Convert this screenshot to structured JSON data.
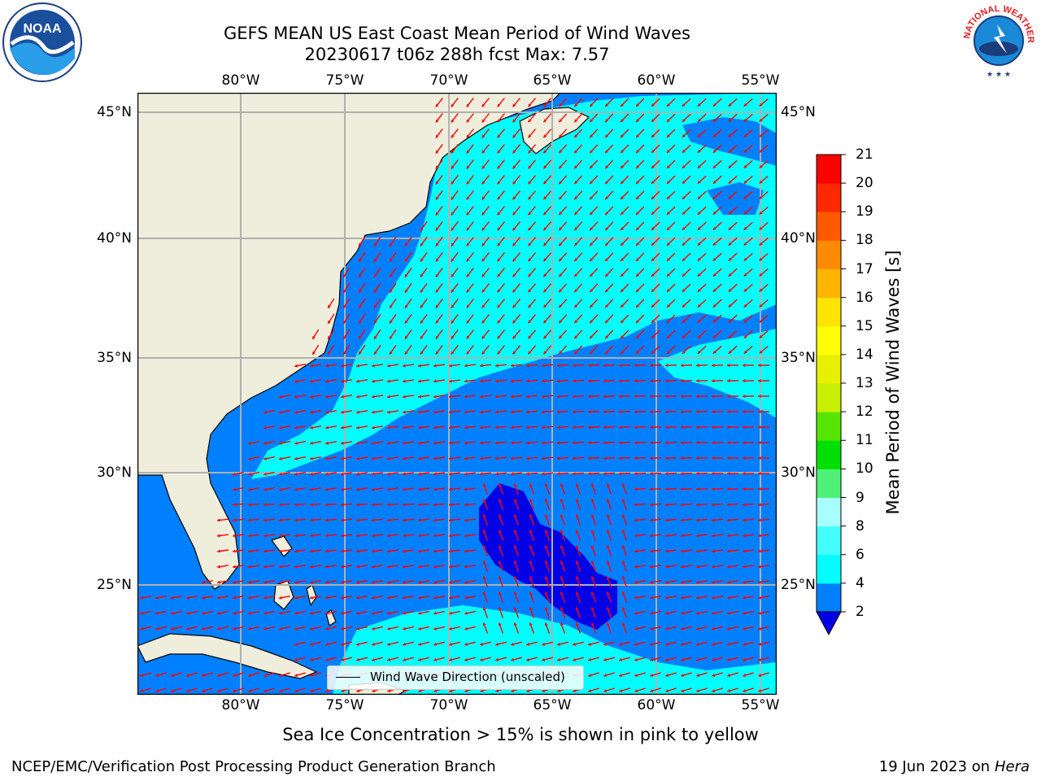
{
  "title": {
    "line1": "GEFS MEAN US East Coast Mean Period of Wind Waves",
    "line2": "20230617 t06z 288h fcst   Max: 7.57"
  },
  "map": {
    "lon_ticks": [
      "80°W",
      "75°W",
      "70°W",
      "65°W",
      "60°W",
      "55°W"
    ],
    "lat_ticks": [
      "45°N",
      "40°N",
      "35°N",
      "30°N",
      "25°N"
    ],
    "colors": {
      "land": "#efeedc",
      "ocean_2_4": "#0080ff",
      "ocean_4_6": "#00ffff",
      "ocean_6_8": "#44ffff",
      "ocean_lt_2": "#0000e6",
      "arrows": "#ff0000",
      "grid": "#b0b0b0"
    },
    "legend_label": "Wind Wave Direction (unscaled)"
  },
  "colorbar": {
    "title": "Mean Period of Wind Waves [s]",
    "levels": [
      "2",
      "4",
      "6",
      "8",
      "9",
      "10",
      "11",
      "12",
      "13",
      "14",
      "15",
      "16",
      "17",
      "18",
      "19",
      "20",
      "21"
    ],
    "colors": [
      "#0080ff",
      "#00ffff",
      "#44ffff",
      "#a8ffff",
      "#50f078",
      "#00e000",
      "#55e600",
      "#c8f000",
      "#e8f000",
      "#ffff00",
      "#ffe400",
      "#ffb400",
      "#ff8c00",
      "#ff5a00",
      "#ff2800",
      "#ff0000"
    ],
    "under_color": "#0000e6"
  },
  "note": "Sea Ice Concentration > 15% is shown in pink to yellow",
  "footer": {
    "left": "NCEP/EMC/Verification Post Processing Product Generation Branch",
    "date": "19 Jun 2023 on",
    "host": "Hera"
  },
  "logos": {
    "noaa_text": "NOAA",
    "nws_text": "NATIONAL WEATHER SERVICE"
  }
}
